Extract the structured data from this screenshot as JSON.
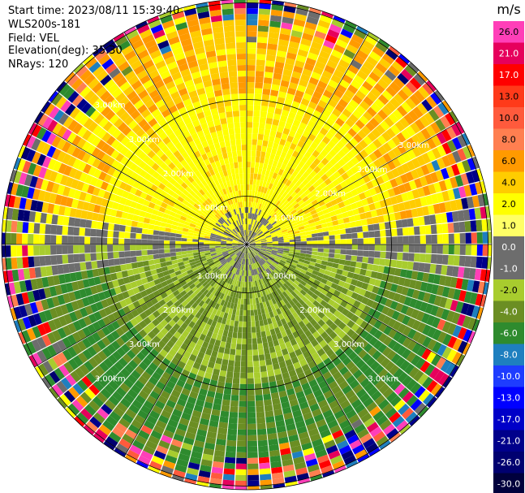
{
  "header": {
    "start_time": "Start time: 2023/08/11 15:39:40",
    "instrument": "WLS200s-181",
    "field": "Field: VEL",
    "elevation": "Elevation(deg): 35.30",
    "nrays": "NRays: 120"
  },
  "colorbar": {
    "unit": "m/s",
    "ticks": [
      "26.0",
      "21.0",
      "17.0",
      "13.0",
      "10.0",
      "8.0",
      "6.0",
      "4.0",
      "2.0",
      "1.0",
      "0.0",
      "-1.0",
      "-2.0",
      "-4.0",
      "-6.0",
      "-8.0",
      "-10.0",
      "-13.0",
      "-17.0",
      "-21.0",
      "-26.0",
      "-30.0"
    ],
    "colors": [
      "#ff3fb8",
      "#e6005c",
      "#ff0000",
      "#ff3a1a",
      "#ff5a3c",
      "#ff7f50",
      "#ff9a00",
      "#ffcc00",
      "#ffff00",
      "#ffff66",
      "#6d6d6d",
      "#6d6d6d",
      "#a8cc2e",
      "#6b8e23",
      "#2e8b2e",
      "#1e7fbf",
      "#1e3cff",
      "#0000ff",
      "#0000c8",
      "#00008b",
      "#000070",
      "#00003c"
    ]
  },
  "chart_data": {
    "type": "heatmap",
    "projection": "polar PPI",
    "field": "VEL",
    "units": "m/s",
    "nrays": 120,
    "elevation_deg": 35.3,
    "ring_labels_km": [
      "1.00km",
      "2.00km",
      "3.00km"
    ],
    "ring_label_text": {
      "r1": "1.00km",
      "r2": "2.00km",
      "r3": "3.00km"
    },
    "color_levels": [
      26.0,
      21.0,
      17.0,
      13.0,
      10.0,
      8.0,
      6.0,
      4.0,
      2.0,
      1.0,
      0.0,
      -1.0,
      -2.0,
      -4.0,
      -6.0,
      -8.0,
      -10.0,
      -13.0,
      -17.0,
      -21.0,
      -26.0,
      -30.0
    ],
    "pattern": "positive velocities (yellow/orange) in northern half, negative velocities (green) in southern half, noisy multicolor returns beyond ~2 km"
  }
}
